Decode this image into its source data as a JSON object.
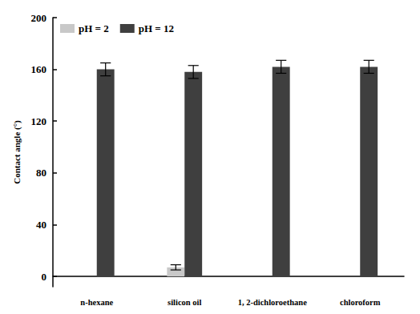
{
  "chart_data": {
    "type": "bar",
    "y_label": "Contact angle (°)",
    "categories": [
      "n-hexane",
      "silicon oil",
      "1, 2-dichloroethane",
      "chloroform"
    ],
    "series": [
      {
        "name": "pH = 2",
        "color": "#c8c8c8",
        "values": [
          0,
          7,
          0,
          0
        ],
        "errors": [
          0,
          2,
          0,
          0
        ]
      },
      {
        "name": "pH = 12",
        "color": "#3f3f3f",
        "values": [
          160,
          158,
          162,
          162
        ],
        "errors": [
          5,
          5,
          5,
          5
        ]
      }
    ],
    "ylim": [
      -8,
      200
    ],
    "yticks": [
      0,
      40,
      80,
      120,
      160,
      200
    ],
    "grid": false,
    "legend": "upper left"
  }
}
